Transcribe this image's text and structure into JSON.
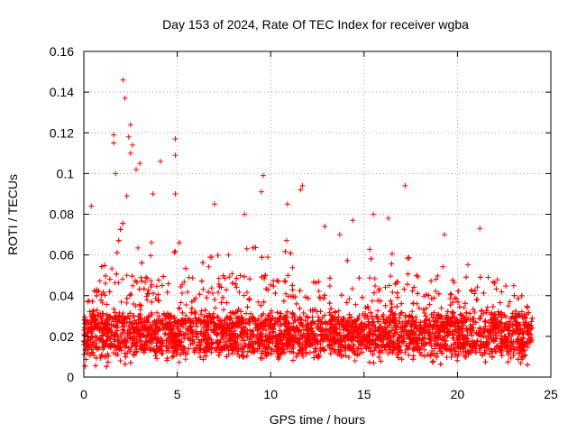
{
  "chart_data": {
    "type": "scatter",
    "title": "Day 153 of 2024, Rate Of TEC Index for receiver wgba",
    "xlabel": "GPS time / hours",
    "ylabel": "ROTI / TECUs",
    "xlim": [
      0,
      25
    ],
    "ylim": [
      0,
      0.16
    ],
    "xticks": [
      "0",
      "5",
      "10",
      "15",
      "20",
      "25"
    ],
    "yticks": [
      "0",
      "0.02",
      "0.04",
      "0.06",
      "0.08",
      "0.1",
      "0.12",
      "0.14",
      "0.16"
    ],
    "xtick_values": [
      0,
      5,
      10,
      15,
      20,
      25
    ],
    "ytick_values": [
      0,
      0.02,
      0.04,
      0.06,
      0.08,
      0.1,
      0.12,
      0.14,
      0.16
    ],
    "grid": true,
    "marker": "plus",
    "color": "#ff0000",
    "x_data_range": [
      0,
      24
    ],
    "series": [
      {
        "name": "ROTI",
        "note": "dense scatter; baseline mostly 0.01-0.04 TECU/s across 0-24 h",
        "envelope": [
          {
            "x": 0.0,
            "low": 0.005,
            "high": 0.035
          },
          {
            "x": 1.0,
            "low": 0.005,
            "high": 0.06
          },
          {
            "x": 2.0,
            "low": 0.006,
            "high": 0.08
          },
          {
            "x": 3.0,
            "low": 0.007,
            "high": 0.085
          },
          {
            "x": 4.0,
            "low": 0.007,
            "high": 0.075
          },
          {
            "x": 5.0,
            "low": 0.006,
            "high": 0.07
          },
          {
            "x": 6.0,
            "low": 0.008,
            "high": 0.05
          },
          {
            "x": 7.0,
            "low": 0.008,
            "high": 0.07
          },
          {
            "x": 8.0,
            "low": 0.008,
            "high": 0.06
          },
          {
            "x": 9.0,
            "low": 0.007,
            "high": 0.07
          },
          {
            "x": 10.0,
            "low": 0.008,
            "high": 0.06
          },
          {
            "x": 11.0,
            "low": 0.007,
            "high": 0.07
          },
          {
            "x": 12.0,
            "low": 0.008,
            "high": 0.05
          },
          {
            "x": 13.0,
            "low": 0.008,
            "high": 0.05
          },
          {
            "x": 14.0,
            "low": 0.006,
            "high": 0.065
          },
          {
            "x": 15.0,
            "low": 0.006,
            "high": 0.075
          },
          {
            "x": 16.0,
            "low": 0.006,
            "high": 0.07
          },
          {
            "x": 17.0,
            "low": 0.006,
            "high": 0.07
          },
          {
            "x": 18.0,
            "low": 0.007,
            "high": 0.05
          },
          {
            "x": 19.0,
            "low": 0.006,
            "high": 0.065
          },
          {
            "x": 20.0,
            "low": 0.007,
            "high": 0.05
          },
          {
            "x": 21.0,
            "low": 0.007,
            "high": 0.06
          },
          {
            "x": 22.0,
            "low": 0.007,
            "high": 0.05
          },
          {
            "x": 23.0,
            "low": 0.006,
            "high": 0.045
          },
          {
            "x": 24.0,
            "low": 0.006,
            "high": 0.045
          }
        ],
        "outliers": [
          {
            "x": 1.6,
            "y": 0.119
          },
          {
            "x": 1.6,
            "y": 0.115
          },
          {
            "x": 1.7,
            "y": 0.1
          },
          {
            "x": 2.1,
            "y": 0.146
          },
          {
            "x": 2.2,
            "y": 0.137
          },
          {
            "x": 2.5,
            "y": 0.124
          },
          {
            "x": 2.4,
            "y": 0.118
          },
          {
            "x": 2.6,
            "y": 0.114
          },
          {
            "x": 2.5,
            "y": 0.11
          },
          {
            "x": 2.8,
            "y": 0.102
          },
          {
            "x": 3.0,
            "y": 0.105
          },
          {
            "x": 2.3,
            "y": 0.089
          },
          {
            "x": 4.1,
            "y": 0.106
          },
          {
            "x": 3.7,
            "y": 0.09
          },
          {
            "x": 4.9,
            "y": 0.117
          },
          {
            "x": 4.9,
            "y": 0.109
          },
          {
            "x": 4.9,
            "y": 0.09
          },
          {
            "x": 0.4,
            "y": 0.084
          },
          {
            "x": 9.6,
            "y": 0.099
          },
          {
            "x": 9.5,
            "y": 0.091
          },
          {
            "x": 11.7,
            "y": 0.094
          },
          {
            "x": 11.6,
            "y": 0.092
          },
          {
            "x": 10.9,
            "y": 0.085
          },
          {
            "x": 8.6,
            "y": 0.08
          },
          {
            "x": 7.0,
            "y": 0.085
          },
          {
            "x": 17.2,
            "y": 0.094
          },
          {
            "x": 16.3,
            "y": 0.078
          },
          {
            "x": 15.5,
            "y": 0.08
          },
          {
            "x": 19.3,
            "y": 0.07
          },
          {
            "x": 21.2,
            "y": 0.073
          },
          {
            "x": 13.7,
            "y": 0.07
          },
          {
            "x": 12.9,
            "y": 0.074
          },
          {
            "x": 14.4,
            "y": 0.077
          }
        ]
      }
    ]
  }
}
